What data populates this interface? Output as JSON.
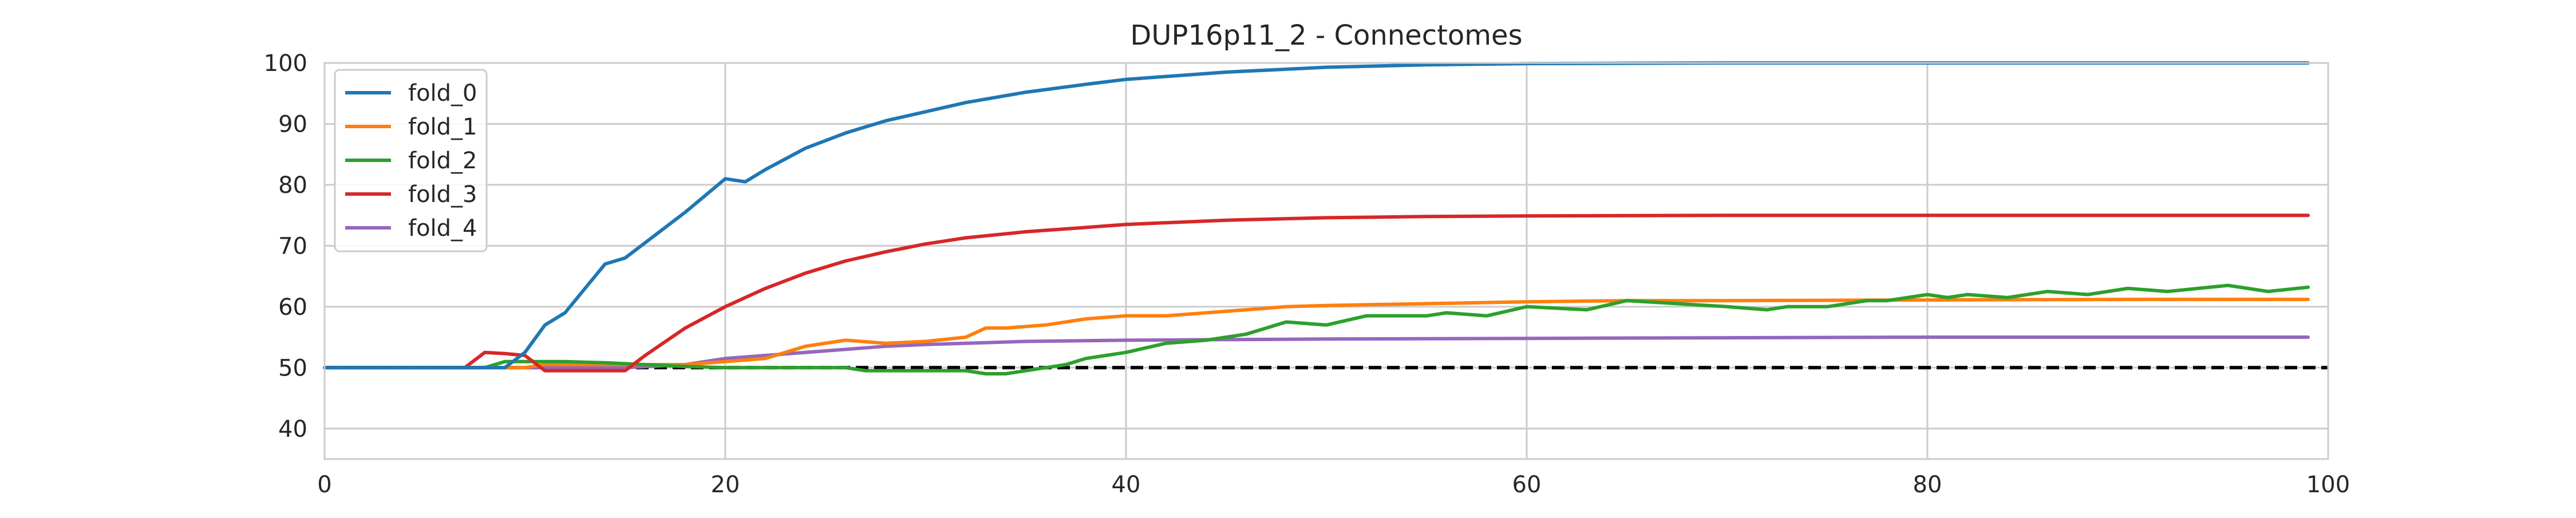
{
  "chart_data": {
    "type": "line",
    "title": "DUP16p11_2 - Connectomes",
    "xlabel": "",
    "ylabel": "",
    "xlim": [
      0,
      100
    ],
    "ylim": [
      35,
      100
    ],
    "xticks": [
      0,
      20,
      40,
      60,
      80,
      100
    ],
    "yticks": [
      40,
      50,
      60,
      70,
      80,
      90,
      100
    ],
    "grid": true,
    "legend_position": "top-left",
    "reference_line": {
      "y": 50,
      "style": "dashed",
      "color": "#000000"
    },
    "series": [
      {
        "name": "fold_0",
        "color": "#1f77b4",
        "x": [
          0,
          7,
          8,
          9,
          10,
          11,
          12,
          13,
          14,
          15,
          16,
          18,
          20,
          21,
          22,
          24,
          26,
          28,
          30,
          32,
          35,
          38,
          40,
          45,
          50,
          55,
          60,
          70,
          80,
          90,
          99
        ],
        "y": [
          50,
          50,
          50,
          50,
          52.5,
          57,
          59,
          63,
          67,
          68,
          70.5,
          75.5,
          81,
          80.5,
          82.5,
          86,
          88.5,
          90.5,
          92,
          93.5,
          95.2,
          96.5,
          97.3,
          98.5,
          99.3,
          99.7,
          99.9,
          100,
          100,
          100,
          100
        ]
      },
      {
        "name": "fold_1",
        "color": "#ff7f0e",
        "x": [
          0,
          7,
          8,
          9,
          10,
          11,
          12,
          15,
          18,
          20,
          22,
          24,
          26,
          28,
          30,
          32,
          33,
          34,
          36,
          38,
          40,
          42,
          44,
          46,
          48,
          50,
          55,
          60,
          65,
          70,
          80,
          90,
          99
        ],
        "y": [
          50,
          50,
          50,
          50,
          50,
          50.5,
          50.5,
          50.5,
          50.5,
          51,
          51.5,
          53.5,
          54.5,
          54,
          54.3,
          55,
          56.5,
          56.5,
          57,
          58,
          58.5,
          58.5,
          59,
          59.5,
          60,
          60.2,
          60.5,
          60.8,
          61,
          61,
          61.1,
          61.2,
          61.2
        ],
        "label": "fold_1"
      },
      {
        "name": "fold_2",
        "color": "#2ca02c",
        "x": [
          0,
          8,
          9,
          10,
          12,
          14,
          16,
          18,
          20,
          22,
          24,
          26,
          27,
          28,
          30,
          32,
          33,
          34,
          35,
          36,
          37,
          38,
          40,
          42,
          44,
          46,
          48,
          50,
          52,
          55,
          56,
          58,
          60,
          63,
          65,
          70,
          72,
          73,
          75,
          77,
          78,
          80,
          81,
          82,
          84,
          86,
          88,
          90,
          92,
          95,
          97,
          99
        ],
        "y": [
          50,
          50,
          51,
          51,
          51,
          50.8,
          50.5,
          50.2,
          50,
          50,
          50,
          50,
          49.5,
          49.5,
          49.5,
          49.5,
          49,
          49,
          49.5,
          50,
          50.5,
          51.5,
          52.5,
          54,
          54.5,
          55.5,
          57.5,
          57,
          58.5,
          58.5,
          59,
          58.5,
          60,
          59.5,
          61,
          60,
          59.5,
          60,
          60,
          61,
          61,
          62,
          61.5,
          62,
          61.5,
          62.5,
          62,
          63,
          62.5,
          63.5,
          62.5,
          63.2
        ]
      },
      {
        "name": "fold_3",
        "color": "#d62728",
        "x": [
          0,
          7,
          8,
          9,
          10,
          11,
          12,
          13,
          14,
          15,
          16,
          18,
          20,
          22,
          24,
          26,
          28,
          30,
          32,
          35,
          38,
          40,
          45,
          50,
          55,
          60,
          70,
          80,
          90,
          99
        ],
        "y": [
          50,
          50,
          52.5,
          52.3,
          52,
          49.5,
          49.5,
          49.5,
          49.5,
          49.5,
          52,
          56.5,
          60,
          63,
          65.5,
          67.5,
          69,
          70.3,
          71.3,
          72.3,
          73,
          73.5,
          74.2,
          74.6,
          74.8,
          74.9,
          75,
          75,
          75,
          75
        ]
      },
      {
        "name": "fold_4",
        "color": "#9467bd",
        "x": [
          0,
          10,
          15,
          18,
          20,
          22,
          24,
          26,
          28,
          30,
          35,
          40,
          45,
          50,
          60,
          70,
          80,
          90,
          99
        ],
        "y": [
          50,
          50,
          50,
          50.5,
          51.5,
          52,
          52.5,
          53,
          53.5,
          53.8,
          54.3,
          54.5,
          54.6,
          54.7,
          54.8,
          54.9,
          55,
          55,
          55
        ]
      }
    ]
  }
}
